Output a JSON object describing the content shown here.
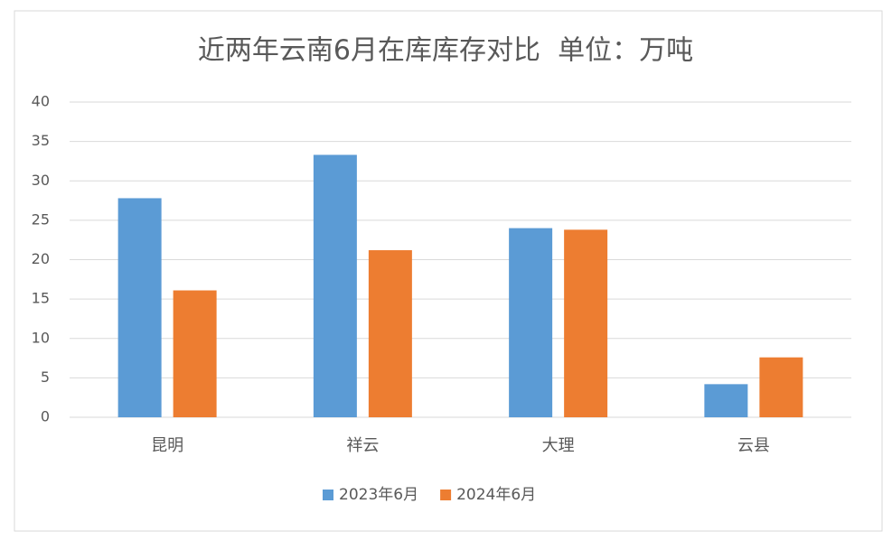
{
  "chart_data": {
    "type": "bar",
    "title": "近两年云南6月在库库存对比  单位：万吨",
    "categories": [
      "昆明",
      "祥云",
      "大理",
      "云县"
    ],
    "series": [
      {
        "name": "2023年6月",
        "color": "#5b9bd5",
        "values": [
          27.8,
          33.3,
          24.0,
          4.2
        ]
      },
      {
        "name": "2024年6月",
        "color": "#ed7d31",
        "values": [
          16.1,
          21.2,
          23.8,
          7.6
        ]
      }
    ],
    "ylim": [
      0,
      40
    ],
    "yticks": [
      0,
      5,
      10,
      15,
      20,
      25,
      30,
      35,
      40
    ],
    "grid": true,
    "legend": "bottom"
  }
}
